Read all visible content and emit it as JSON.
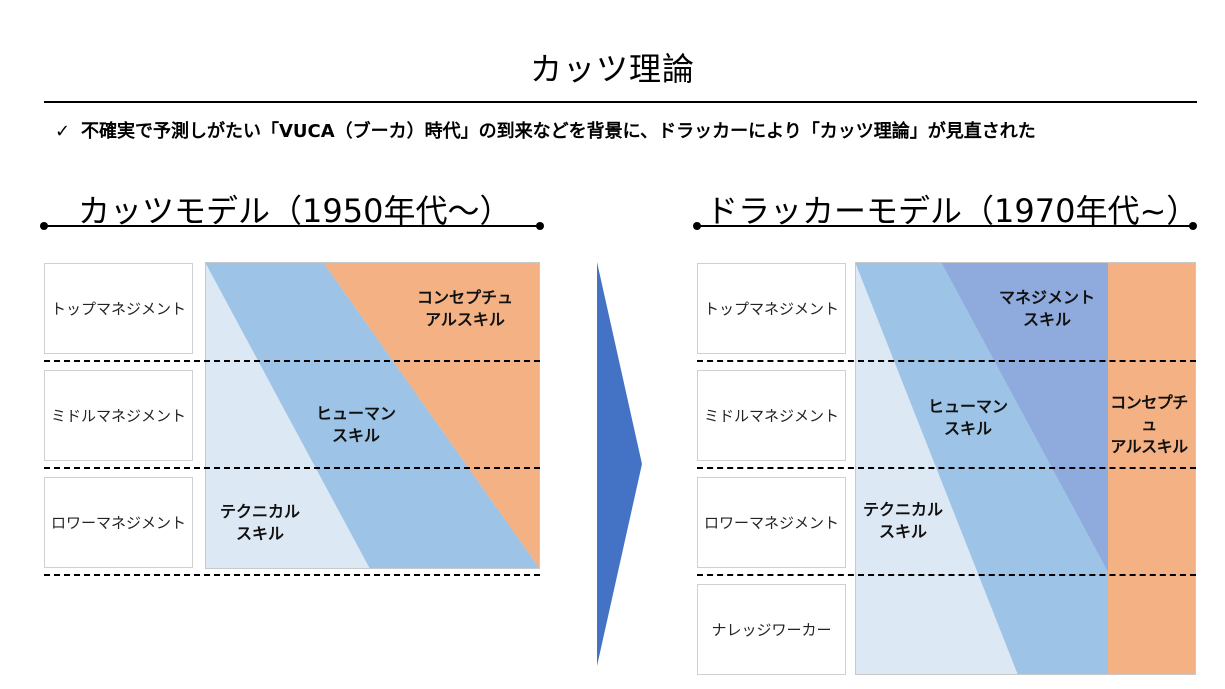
{
  "title": "カッツ理論",
  "bullet": {
    "icon": "check-icon",
    "text": "不確実で予測しがたい「VUCA（ブーカ）時代」の到来などを背景に、ドラッカーにより「カッツ理論」が見直された"
  },
  "left_model": {
    "title": "カッツモデル（1950年代～）",
    "roles": [
      "トップマネジメント",
      "ミドルマネジメント",
      "ロワーマネジメント"
    ],
    "skills": {
      "conceptual": "コンセプチュ\nアルスキル",
      "human": "ヒューマン\nスキル",
      "technical": "テクニカル\nスキル"
    }
  },
  "arrow": {
    "icon": "chevron-right-arrow-icon"
  },
  "right_model": {
    "title": "ドラッカーモデル（1970年代~）",
    "roles": [
      "トップマネジメント",
      "ミドルマネジメント",
      "ロワーマネジメント",
      "ナレッジワーカー"
    ],
    "skills": {
      "management": "マネジメント\nスキル",
      "human": "ヒューマン\nスキル",
      "conceptual": "コンセプチュ\nアルスキル",
      "technical": "テクニカル\nスキル"
    }
  },
  "colors": {
    "technical": "#dde8f5",
    "human": "#9dc3e6",
    "management": "#8faadc",
    "conceptual": "#f4b183",
    "arrow": "#4472c4"
  }
}
